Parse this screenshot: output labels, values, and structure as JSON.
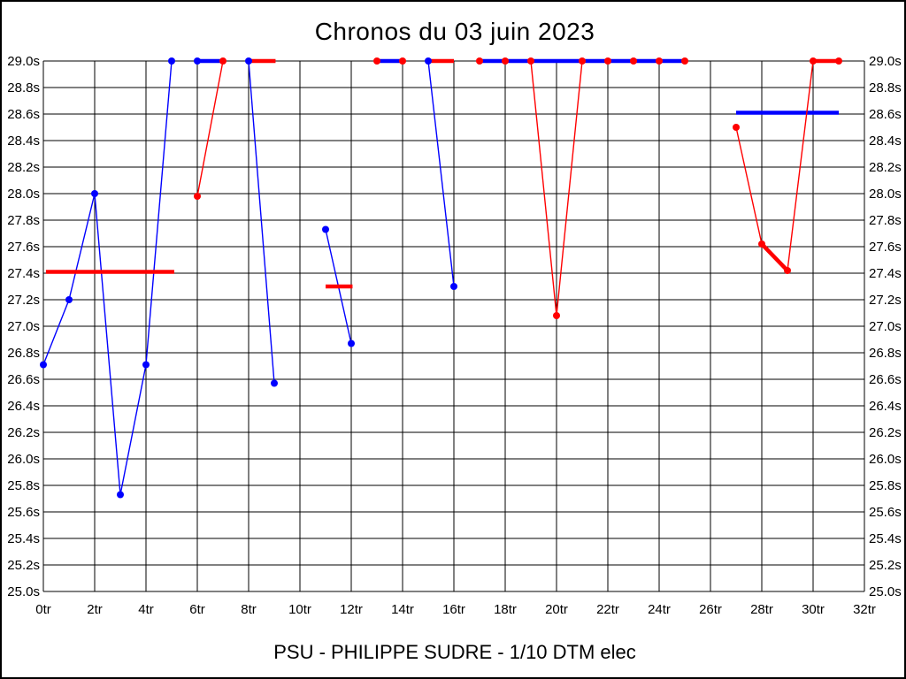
{
  "chart_data": {
    "type": "line",
    "title": "Chronos du 03 juin 2023",
    "footer_label": "PSU - PHILIPPE SUDRE - 1/10 DTM elec",
    "x_axis": {
      "unit": "tr",
      "min": 0,
      "max": 32,
      "tick_step": 2,
      "tick_labels": [
        "0tr",
        "2tr",
        "4tr",
        "6tr",
        "8tr",
        "10tr",
        "12tr",
        "14tr",
        "16tr",
        "18tr",
        "20tr",
        "22tr",
        "24tr",
        "26tr",
        "28tr",
        "30tr",
        "32tr"
      ]
    },
    "y_axis": {
      "unit": "s",
      "min": 25.0,
      "max": 29.0,
      "tick_step": 0.2,
      "labels_on_both_sides": true,
      "tick_labels_top_to_bottom": [
        "29.0s",
        "28.8s",
        "28.6s",
        "28.4s",
        "28.2s",
        "28.0s",
        "27.8s",
        "27.6s",
        "27.4s",
        "27.2s",
        "27.0s",
        "26.8s",
        "26.6s",
        "26.4s",
        "26.2s",
        "26.0s",
        "25.8s",
        "25.6s",
        "25.4s",
        "25.2s",
        "25.0s"
      ]
    },
    "grid": true,
    "clip_ceiling": 29.0,
    "series": [
      {
        "name": "blue-laps",
        "color": "#0000ff",
        "polylines": [
          [
            [
              0,
              26.71
            ],
            [
              1,
              27.2
            ],
            [
              2,
              28.0
            ],
            [
              3,
              25.73
            ],
            [
              4,
              26.71
            ],
            [
              5,
              29.0
            ]
          ],
          [
            [
              8,
              29.0
            ],
            [
              9,
              26.57
            ]
          ],
          [
            [
              11,
              27.73
            ],
            [
              12,
              26.87
            ]
          ],
          [
            [
              15,
              29.0
            ],
            [
              16,
              27.3
            ]
          ]
        ],
        "thick_bars": [
          [
            [
              6,
              29.0
            ],
            [
              7,
              29.0
            ]
          ],
          [
            [
              13,
              29.0
            ],
            [
              14,
              29.0
            ]
          ],
          [
            [
              17,
              29.0
            ],
            [
              25,
              29.0
            ]
          ],
          [
            [
              27,
              28.61
            ],
            [
              31,
              28.61
            ]
          ]
        ],
        "points": [
          [
            0,
            26.71
          ],
          [
            1,
            27.2
          ],
          [
            2,
            28.0
          ],
          [
            3,
            25.73
          ],
          [
            4,
            26.71
          ],
          [
            5,
            29.0
          ],
          [
            6,
            29.0
          ],
          [
            8,
            29.0
          ],
          [
            9,
            26.57
          ],
          [
            11,
            27.73
          ],
          [
            12,
            26.87
          ],
          [
            15,
            29.0
          ],
          [
            16,
            27.3
          ]
        ]
      },
      {
        "name": "red-laps",
        "color": "#ff0000",
        "polylines": [
          [
            [
              6,
              27.98
            ],
            [
              7,
              29.0
            ]
          ],
          [
            [
              19,
              29.0
            ],
            [
              20,
              27.08
            ],
            [
              21,
              29.0
            ]
          ],
          [
            [
              27,
              28.5
            ],
            [
              28,
              27.62
            ],
            [
              29,
              27.42
            ],
            [
              30,
              29.0
            ]
          ]
        ],
        "thick_bars": [
          [
            [
              0.1,
              27.41
            ],
            [
              5.1,
              27.41
            ]
          ],
          [
            [
              8,
              29.0
            ],
            [
              9.05,
              29.0
            ]
          ],
          [
            [
              11,
              27.3
            ],
            [
              12.05,
              27.3
            ]
          ],
          [
            [
              15,
              29.0
            ],
            [
              16,
              29.0
            ]
          ],
          [
            [
              28,
              27.62
            ],
            [
              29,
              27.42
            ]
          ],
          [
            [
              30,
              29.0
            ],
            [
              31,
              29.0
            ]
          ]
        ],
        "points": [
          [
            6,
            27.98
          ],
          [
            7,
            29.0
          ],
          [
            13,
            29.0
          ],
          [
            14,
            29.0
          ],
          [
            17,
            29.0
          ],
          [
            18,
            29.0
          ],
          [
            19,
            29.0
          ],
          [
            20,
            27.08
          ],
          [
            21,
            29.0
          ],
          [
            22,
            29.0
          ],
          [
            23,
            29.0
          ],
          [
            24,
            29.0
          ],
          [
            25,
            29.0
          ],
          [
            27,
            28.5
          ],
          [
            28,
            27.62
          ],
          [
            29,
            27.42
          ],
          [
            30,
            29.0
          ],
          [
            31,
            29.0
          ]
        ]
      }
    ]
  }
}
